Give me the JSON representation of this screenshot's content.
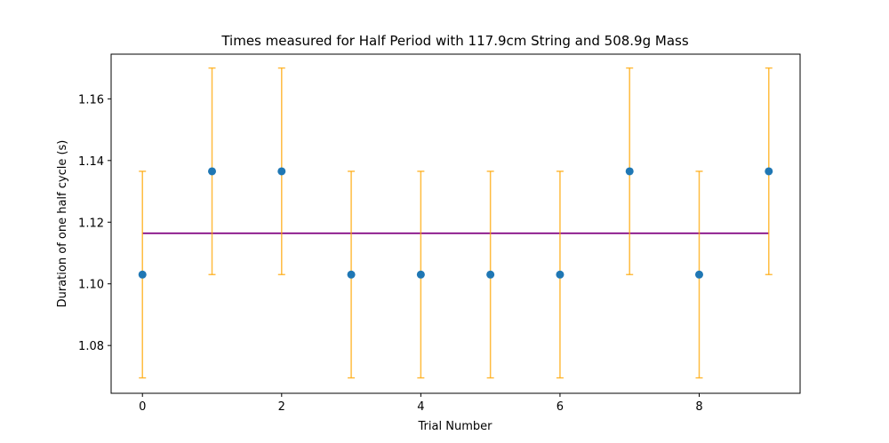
{
  "chart_data": {
    "type": "scatter",
    "title": "Times measured for Half Period with 117.9cm String and 508.9g Mass",
    "xlabel": "Trial Number",
    "ylabel": "Duration of one half cycle (s)",
    "xlim": [
      -0.45,
      9.45
    ],
    "ylim": [
      1.0645,
      1.1745
    ],
    "x_ticks": [
      0,
      2,
      4,
      6,
      8
    ],
    "x_tick_labels": [
      "0",
      "2",
      "4",
      "6",
      "8"
    ],
    "y_ticks": [
      1.08,
      1.1,
      1.12,
      1.14,
      1.16
    ],
    "y_tick_labels": [
      "1.08",
      "1.10",
      "1.12",
      "1.14",
      "1.16"
    ],
    "grid": false,
    "legend": "none",
    "series": [
      {
        "x": [
          0,
          1,
          2,
          3,
          4,
          5,
          6,
          7,
          8,
          9
        ],
        "y": [
          1.103,
          1.1365,
          1.1365,
          1.103,
          1.103,
          1.103,
          1.103,
          1.1365,
          1.103,
          1.1365
        ],
        "yerr": [
          0.0335,
          0.0335,
          0.0335,
          0.0335,
          0.0335,
          0.0335,
          0.0335,
          0.0335,
          0.0335,
          0.0335
        ],
        "marker_color": "#1f77b4",
        "errorbar_color": "#ffa500"
      }
    ],
    "mean_line": {
      "y": 1.1164,
      "x_range": [
        0,
        9
      ],
      "color": "#800080"
    }
  }
}
